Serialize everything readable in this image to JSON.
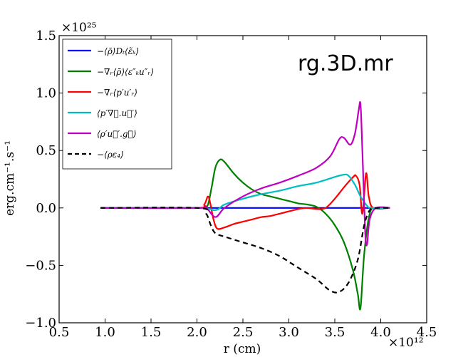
{
  "chart_data": {
    "type": "line",
    "title": "",
    "annotation": "rg.3D.mr",
    "xlabel": "r (cm)",
    "ylabel": "erg.cm⁻¹.s⁻¹",
    "x_multiplier": "×10¹²",
    "y_multiplier": "×10²⁵",
    "xlim": [
      0.5,
      4.5
    ],
    "ylim": [
      -1.0,
      1.5
    ],
    "xticks": [
      0.5,
      1.0,
      1.5,
      2.0,
      2.5,
      3.0,
      3.5,
      4.0,
      4.5
    ],
    "xtick_labels": [
      "0.5",
      "1.0",
      "1.5",
      "2.0",
      "2.5",
      "3.0",
      "3.5",
      "4.0",
      "4.5"
    ],
    "yticks": [
      -1.0,
      -0.5,
      0.0,
      0.5,
      1.0,
      1.5
    ],
    "ytick_labels": [
      "−1.0",
      "−0.5",
      "0.0",
      "0.5",
      "1.0",
      "1.5"
    ],
    "legend_location": "top-left",
    "grid": false,
    "series": [
      {
        "name": "−⟨ρ̄⟩Dₜ⟨ε̃ₖ⟩",
        "color": "#0000ff",
        "dash": "solid",
        "points": [
          [
            0.95,
            0.0
          ],
          [
            2.0,
            0.0
          ],
          [
            2.5,
            0.0
          ],
          [
            3.0,
            0.0
          ],
          [
            3.5,
            0.0
          ],
          [
            3.8,
            0.0
          ],
          [
            4.1,
            0.0
          ]
        ]
      },
      {
        "name": "−∇ᵣ⟨ρ̄⟩⟨ε″ₖu″ᵣ⟩",
        "color": "#008000",
        "dash": "solid",
        "points": [
          [
            0.95,
            0.0
          ],
          [
            2.0,
            0.0
          ],
          [
            2.08,
            0.01
          ],
          [
            2.12,
            0.03
          ],
          [
            2.16,
            0.18
          ],
          [
            2.2,
            0.35
          ],
          [
            2.25,
            0.42
          ],
          [
            2.3,
            0.4
          ],
          [
            2.4,
            0.3
          ],
          [
            2.5,
            0.22
          ],
          [
            2.6,
            0.16
          ],
          [
            2.7,
            0.12
          ],
          [
            2.8,
            0.1
          ],
          [
            2.9,
            0.08
          ],
          [
            3.0,
            0.06
          ],
          [
            3.1,
            0.04
          ],
          [
            3.2,
            0.03
          ],
          [
            3.3,
            0.01
          ],
          [
            3.4,
            -0.05
          ],
          [
            3.5,
            -0.15
          ],
          [
            3.6,
            -0.3
          ],
          [
            3.7,
            -0.55
          ],
          [
            3.75,
            -0.75
          ],
          [
            3.78,
            -0.87
          ],
          [
            3.82,
            -0.4
          ],
          [
            3.88,
            -0.05
          ],
          [
            3.95,
            0.0
          ],
          [
            4.1,
            0.0
          ]
        ]
      },
      {
        "name": "−∇ᵣ⟨p′u′ᵣ⟩",
        "color": "#ff0000",
        "dash": "solid",
        "points": [
          [
            0.95,
            0.0
          ],
          [
            2.0,
            0.0
          ],
          [
            2.08,
            0.03
          ],
          [
            2.12,
            0.1
          ],
          [
            2.15,
            0.02
          ],
          [
            2.18,
            -0.1
          ],
          [
            2.22,
            -0.18
          ],
          [
            2.3,
            -0.17
          ],
          [
            2.4,
            -0.14
          ],
          [
            2.5,
            -0.12
          ],
          [
            2.6,
            -0.1
          ],
          [
            2.7,
            -0.08
          ],
          [
            2.8,
            -0.07
          ],
          [
            2.9,
            -0.05
          ],
          [
            3.0,
            -0.03
          ],
          [
            3.1,
            -0.01
          ],
          [
            3.2,
            0.0
          ],
          [
            3.3,
            -0.01
          ],
          [
            3.4,
            0.0
          ],
          [
            3.5,
            0.08
          ],
          [
            3.6,
            0.18
          ],
          [
            3.7,
            0.27
          ],
          [
            3.73,
            0.28
          ],
          [
            3.77,
            0.2
          ],
          [
            3.8,
            -0.05
          ],
          [
            3.84,
            0.3
          ],
          [
            3.87,
            0.1
          ],
          [
            3.92,
            0.0
          ],
          [
            4.1,
            0.0
          ]
        ]
      },
      {
        "name": "⟨p′∇⃗.u⃗′⟩",
        "color": "#00bfbf",
        "dash": "solid",
        "points": [
          [
            0.95,
            0.0
          ],
          [
            2.0,
            0.0
          ],
          [
            2.2,
            -0.02
          ],
          [
            2.3,
            0.03
          ],
          [
            2.5,
            0.08
          ],
          [
            2.7,
            0.12
          ],
          [
            2.9,
            0.15
          ],
          [
            3.1,
            0.19
          ],
          [
            3.3,
            0.22
          ],
          [
            3.5,
            0.27
          ],
          [
            3.6,
            0.29
          ],
          [
            3.65,
            0.28
          ],
          [
            3.72,
            0.2
          ],
          [
            3.78,
            0.1
          ],
          [
            3.85,
            0.02
          ],
          [
            3.9,
            0.0
          ],
          [
            4.1,
            0.0
          ]
        ]
      },
      {
        "name": "⟨ρ′u⃗′.g⃗⟩",
        "color": "#bf00bf",
        "dash": "solid",
        "points": [
          [
            0.95,
            0.0
          ],
          [
            2.0,
            0.0
          ],
          [
            2.1,
            0.0
          ],
          [
            2.2,
            -0.08
          ],
          [
            2.3,
            0.0
          ],
          [
            2.5,
            0.1
          ],
          [
            2.7,
            0.17
          ],
          [
            2.9,
            0.22
          ],
          [
            3.1,
            0.28
          ],
          [
            3.3,
            0.35
          ],
          [
            3.45,
            0.45
          ],
          [
            3.55,
            0.6
          ],
          [
            3.6,
            0.61
          ],
          [
            3.67,
            0.55
          ],
          [
            3.72,
            0.65
          ],
          [
            3.76,
            0.85
          ],
          [
            3.78,
            0.9
          ],
          [
            3.8,
            0.5
          ],
          [
            3.83,
            -0.2
          ],
          [
            3.85,
            -0.32
          ],
          [
            3.88,
            -0.1
          ],
          [
            3.95,
            0.0
          ],
          [
            4.1,
            0.0
          ]
        ]
      },
      {
        "name": "−⟨ρε₄⟩",
        "color": "#000000",
        "dash": "dashed",
        "points": [
          [
            0.95,
            0.0
          ],
          [
            2.0,
            0.0
          ],
          [
            2.1,
            -0.05
          ],
          [
            2.15,
            -0.15
          ],
          [
            2.2,
            -0.22
          ],
          [
            2.3,
            -0.25
          ],
          [
            2.5,
            -0.3
          ],
          [
            2.7,
            -0.35
          ],
          [
            2.9,
            -0.42
          ],
          [
            3.1,
            -0.52
          ],
          [
            3.3,
            -0.62
          ],
          [
            3.45,
            -0.72
          ],
          [
            3.55,
            -0.73
          ],
          [
            3.65,
            -0.65
          ],
          [
            3.75,
            -0.45
          ],
          [
            3.82,
            -0.15
          ],
          [
            3.88,
            -0.02
          ],
          [
            3.95,
            0.0
          ],
          [
            4.1,
            0.0
          ]
        ]
      }
    ]
  }
}
